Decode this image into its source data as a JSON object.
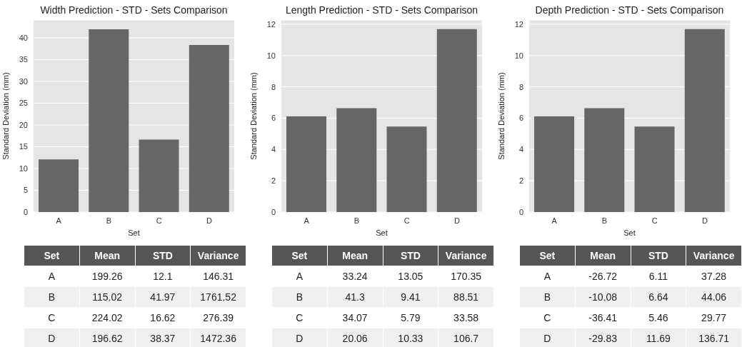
{
  "chart_data": [
    {
      "type": "bar",
      "title": "Width Prediction - STD - Sets Comparison",
      "xlabel": "Set",
      "ylabel": "Standard Deviation (mm)",
      "categories": [
        "A",
        "B",
        "C",
        "D"
      ],
      "values": [
        12.1,
        41.97,
        16.62,
        38.37
      ],
      "color": "#666666",
      "ylim": [
        0,
        44.1
      ],
      "yticks": [
        0,
        5,
        10,
        15,
        20,
        25,
        30,
        35,
        40
      ],
      "grid": "y"
    },
    {
      "type": "bar",
      "title": "Length Prediction - STD - Sets Comparison",
      "xlabel": "Set",
      "ylabel": "Standard Deviation (mm)",
      "categories": [
        "A",
        "B",
        "C",
        "D"
      ],
      "values": [
        6.11,
        6.64,
        5.46,
        11.69
      ],
      "color": "#666666",
      "ylim": [
        0,
        12.27
      ],
      "yticks": [
        0,
        2,
        4,
        6,
        8,
        10,
        12
      ],
      "grid": "y"
    },
    {
      "type": "bar",
      "title": "Depth Prediction - STD - Sets Comparison",
      "xlabel": "Set",
      "ylabel": "Standard Deviation (mm)",
      "categories": [
        "A",
        "B",
        "C",
        "D"
      ],
      "values": [
        6.11,
        6.64,
        5.46,
        11.69
      ],
      "color": "#666666",
      "ylim": [
        0,
        12.27
      ],
      "yticks": [
        0,
        2,
        4,
        6,
        8,
        10,
        12
      ],
      "grid": "y"
    },
    {
      "type": "other",
      "xlabel": "Set",
      "categories": [
        "A",
        "B",
        "C",
        "D"
      ],
      "data_labels": true,
      "series": [
        {
          "name": "Mean",
          "colors": [
            "#ffffff",
            "#f0f0f0",
            "#ffffff",
            "#f0f0f0"
          ],
          "values": [
            199.26,
            115.02,
            224.02,
            196.62
          ]
        },
        {
          "name": "STD",
          "colors": [
            "#ffffff",
            "#f0f0f0",
            "#ffffff",
            "#f0f0f0"
          ],
          "values": [
            12.1,
            41.97,
            16.62,
            38.37
          ]
        },
        {
          "name": "Variance",
          "colors": [
            "#ffffff",
            "#f0f0f0",
            "#ffffff",
            "#f0f0f0"
          ],
          "values": [
            146.31,
            1761.52,
            276.39,
            1472.36
          ]
        }
      ]
    },
    {
      "type": "other",
      "xlabel": "Set",
      "categories": [
        "A",
        "B",
        "C",
        "D"
      ],
      "data_labels": true,
      "series": [
        {
          "name": "Mean",
          "colors": [
            "#ffffff",
            "#f0f0f0",
            "#ffffff",
            "#f0f0f0"
          ],
          "values": [
            33.24,
            41.3,
            34.07,
            20.06
          ]
        },
        {
          "name": "STD",
          "colors": [
            "#ffffff",
            "#f0f0f0",
            "#ffffff",
            "#f0f0f0"
          ],
          "values": [
            13.05,
            9.41,
            5.79,
            10.33
          ]
        },
        {
          "name": "Variance",
          "colors": [
            "#ffffff",
            "#f0f0f0",
            "#ffffff",
            "#f0f0f0"
          ],
          "values": [
            170.35,
            88.51,
            33.58,
            106.7
          ]
        }
      ]
    },
    {
      "type": "other",
      "xlabel": "Set",
      "categories": [
        "A",
        "B",
        "C",
        "D"
      ],
      "data_labels": true,
      "series": [
        {
          "name": "Mean",
          "colors": [
            "#ffffff",
            "#f0f0f0",
            "#ffffff",
            "#f0f0f0"
          ],
          "values": [
            -26.72,
            -10.08,
            -36.41,
            -29.83
          ]
        },
        {
          "name": "STD",
          "colors": [
            "#ffffff",
            "#f0f0f0",
            "#ffffff",
            "#f0f0f0"
          ],
          "values": [
            6.11,
            6.64,
            5.46,
            11.69
          ]
        },
        {
          "name": "Variance",
          "colors": [
            "#ffffff",
            "#f0f0f0",
            "#ffffff",
            "#f0f0f0"
          ],
          "values": [
            37.28,
            44.06,
            29.77,
            136.71
          ]
        }
      ]
    }
  ]
}
